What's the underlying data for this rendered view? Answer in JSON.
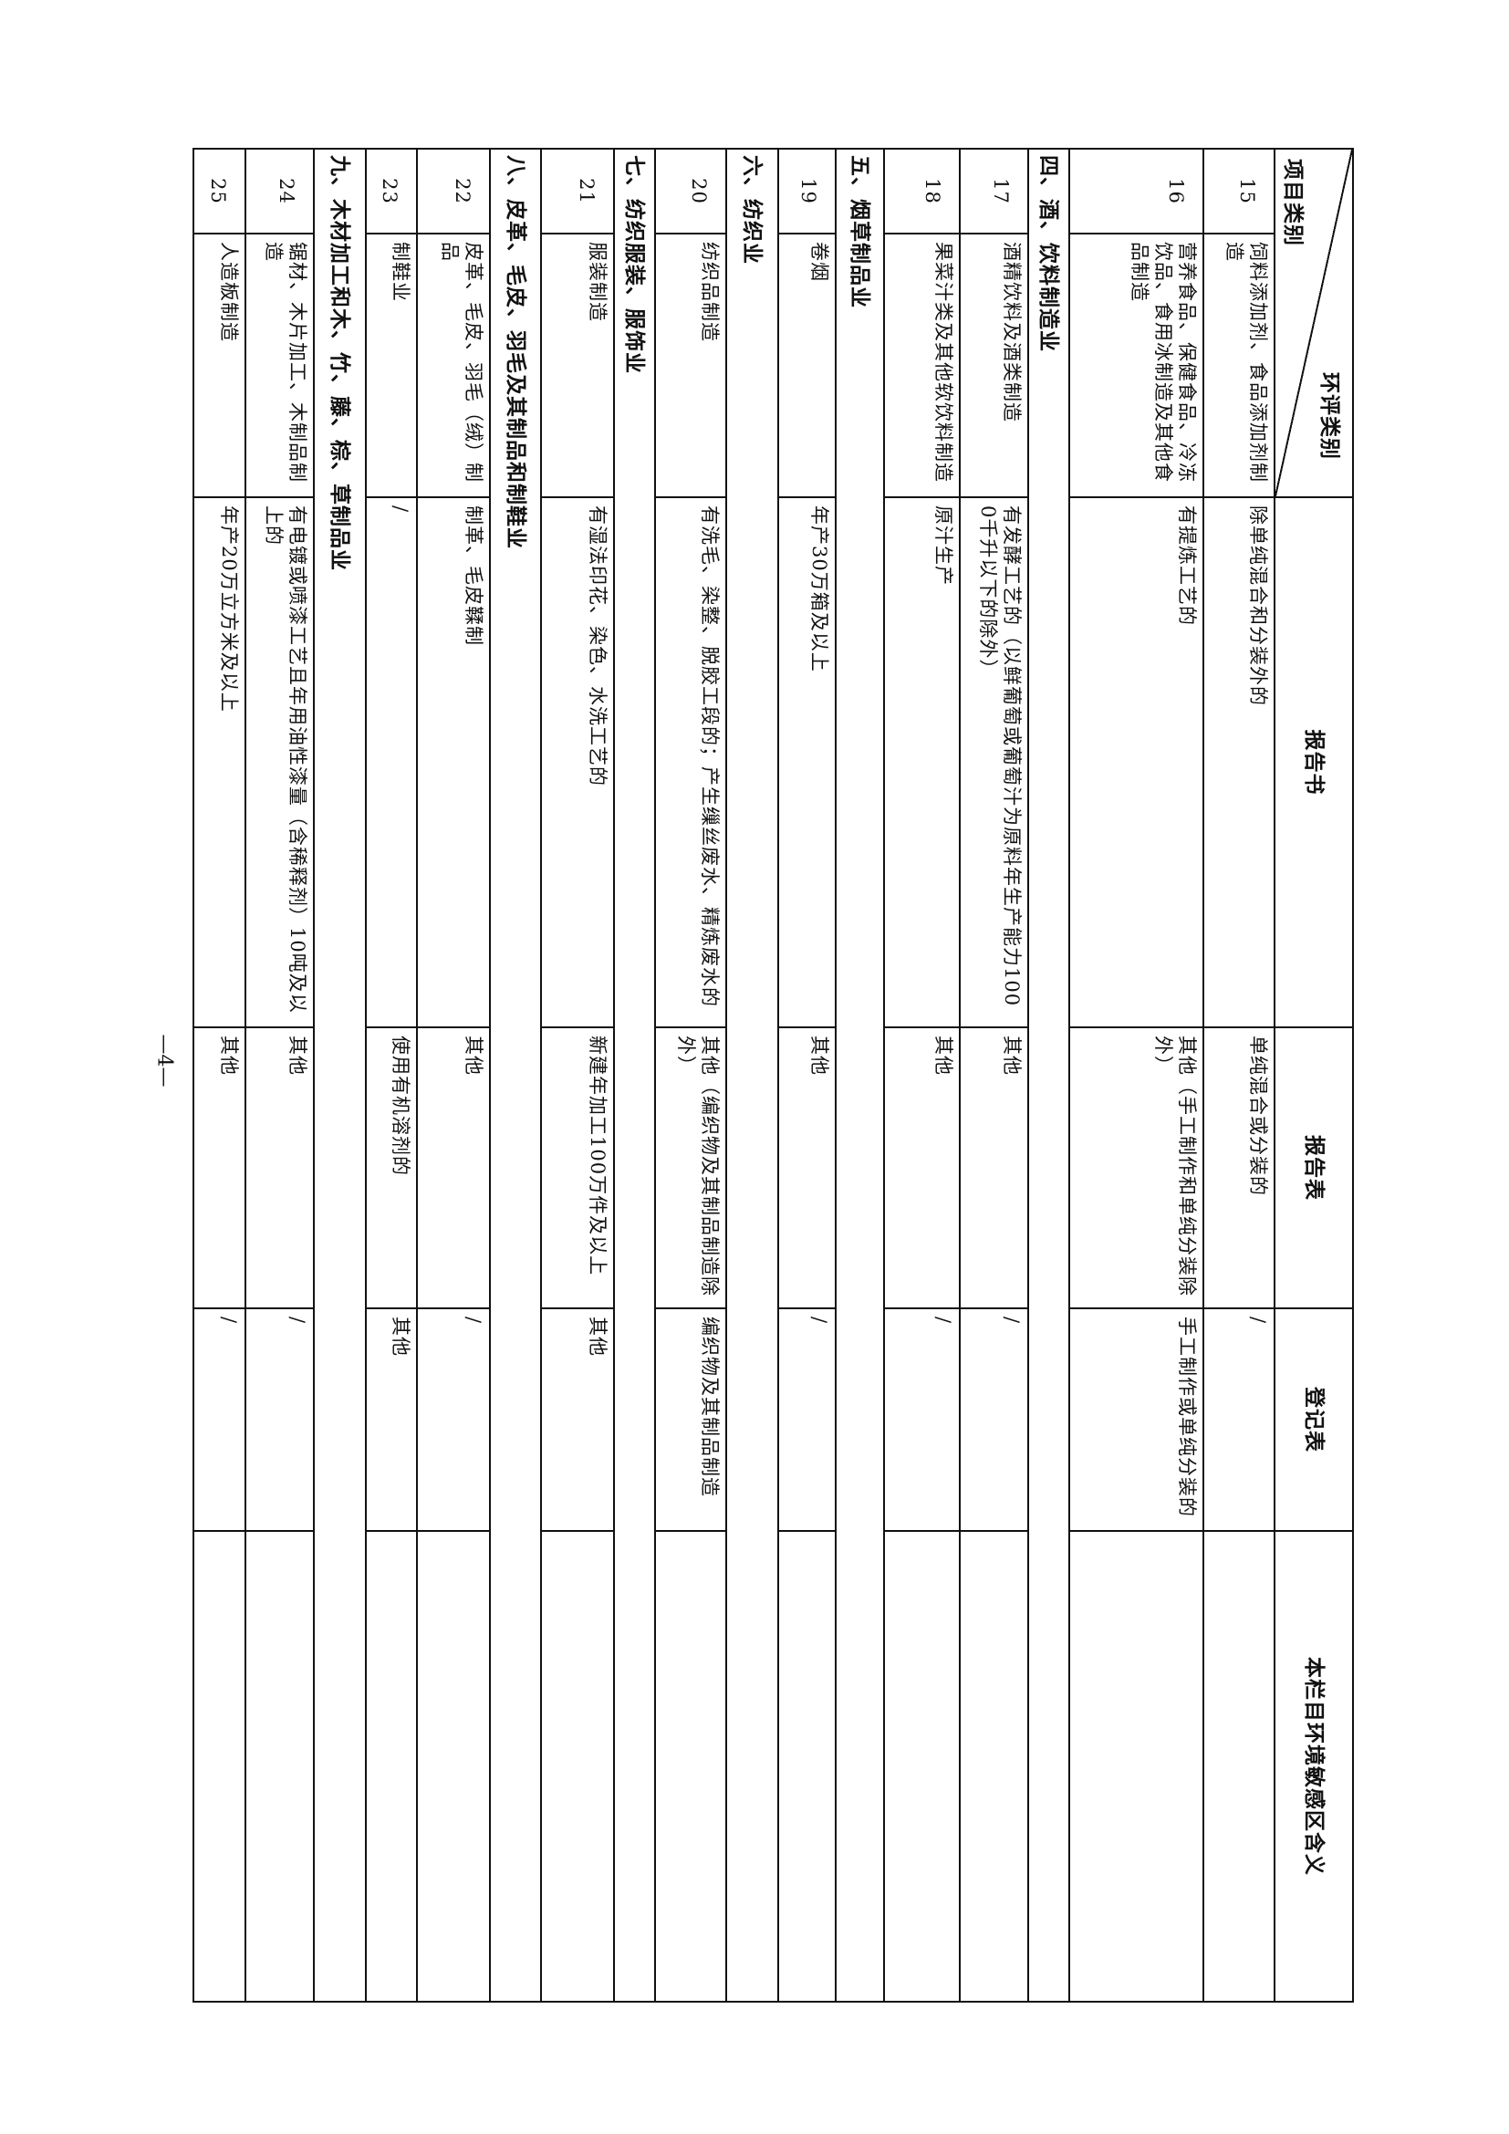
{
  "header": {
    "corner_top": "环评类别",
    "corner_bottom": "项目类别",
    "col_report_book": "报告书",
    "col_report_form": "报告表",
    "col_register": "登记表",
    "col_sensitive": "本栏目环境敏感区含义"
  },
  "rows": [
    {
      "type": "item",
      "num": "15",
      "name": "饲料添加剂、食品添加剂制造",
      "book": "除单纯混合和分装外的",
      "form": "单纯混合或分装的",
      "reg": "/",
      "sens": ""
    },
    {
      "type": "item",
      "num": "16",
      "name": "营养食品、保健食品、冷冻饮品、食用冰制造及其他食品制造",
      "book": "有提炼工艺的",
      "form": "其他（手工制作和单纯分装除外）",
      "reg": "手工制作或单纯分装的",
      "sens": ""
    },
    {
      "type": "section",
      "title": "四、酒、饮料制造业"
    },
    {
      "type": "item",
      "num": "17",
      "name": "酒精饮料及酒类制造",
      "book": "有发酵工艺的（以鲜葡萄或葡萄汁为原料年生产能力1000千升以下的除外）",
      "form": "其他",
      "reg": "/",
      "sens": ""
    },
    {
      "type": "item",
      "num": "18",
      "name": "果菜汁类及其他软饮料制造",
      "book": "原汁生产",
      "form": "其他",
      "reg": "/",
      "sens": ""
    },
    {
      "type": "section",
      "title": "五、烟草制品业"
    },
    {
      "type": "item",
      "num": "19",
      "name": "卷烟",
      "book": "年产30万箱及以上",
      "form": "其他",
      "reg": "/",
      "sens": ""
    },
    {
      "type": "section",
      "title": "六、纺织业"
    },
    {
      "type": "item",
      "num": "20",
      "name": "纺织品制造",
      "book": "有洗毛、染整、脱胶工段的；产生缫丝废水、精炼废水的",
      "form": "其他（编织物及其制品制造除外）",
      "reg": "编织物及其制品制造",
      "sens": ""
    },
    {
      "type": "section",
      "title": "七、纺织服装、服饰业"
    },
    {
      "type": "item",
      "num": "21",
      "name": "服装制造",
      "book": "有湿法印花、染色、水洗工艺的",
      "form": "新建年加工100万件及以上",
      "reg": "其他",
      "sens": ""
    },
    {
      "type": "section",
      "title": "八、皮革、毛皮、羽毛及其制品和制鞋业"
    },
    {
      "type": "item",
      "num": "22",
      "name": "皮革、毛皮、羽毛（绒）制品",
      "book": "制革、毛皮鞣制",
      "form": "其他",
      "reg": "/",
      "sens": ""
    },
    {
      "type": "item",
      "num": "23",
      "name": "制鞋业",
      "book": "/",
      "form": "使用有机溶剂的",
      "reg": "其他",
      "sens": ""
    },
    {
      "type": "section",
      "title": "九、木材加工和木、竹、藤、棕、草制品业"
    },
    {
      "type": "item",
      "num": "24",
      "name": "锯材、木片加工、木制品制造",
      "book": "有电镀或喷漆工艺且年用油性漆量（含稀释剂）10吨及以上的",
      "form": "其他",
      "reg": "/",
      "sens": ""
    },
    {
      "type": "item",
      "num": "25",
      "name": "人造板制造",
      "book": "年产20万立方米及以上",
      "form": "其他",
      "reg": "/",
      "sens": ""
    }
  ],
  "page_number": "—4—"
}
